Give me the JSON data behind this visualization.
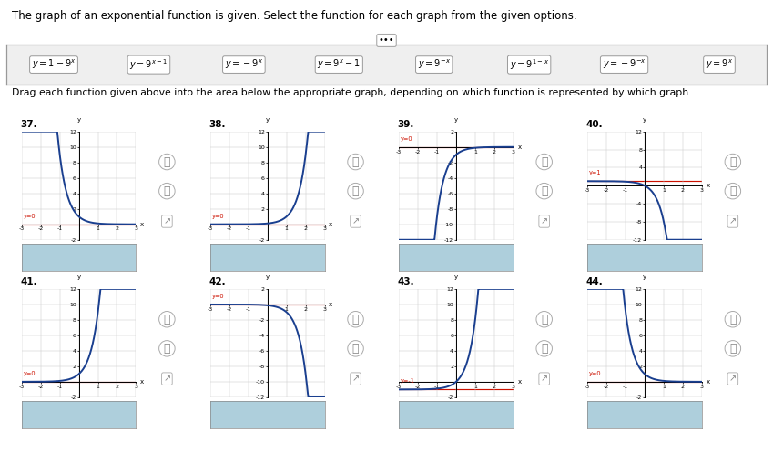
{
  "title": "The graph of an exponential function is given. Select the function for each graph from the given options.",
  "drag_text": "Drag each function given above into the area below the appropriate graph, depending on which function is represented by which graph.",
  "func_labels": [
    "$y=1-9^x$",
    "$y=9^{x-1}$",
    "$y=-9^x$",
    "$y=9^x-1$",
    "$y=9^{-x}$",
    "$y=9^{1-x}$",
    "$y=-9^{-x}$",
    "$y=9^x$"
  ],
  "graph_nums": [
    "37",
    "38",
    "39",
    "40",
    "41",
    "42",
    "43",
    "44"
  ],
  "bg": "#ffffff",
  "grid_c": "#c8c8c8",
  "curve_c": "#1a3f8f",
  "asym_c": "#cc1100",
  "ans_bg": "#aecfdc",
  "fbox_bg": "#efefef",
  "fbox_border": "#999999",
  "icon_c": "#888888"
}
